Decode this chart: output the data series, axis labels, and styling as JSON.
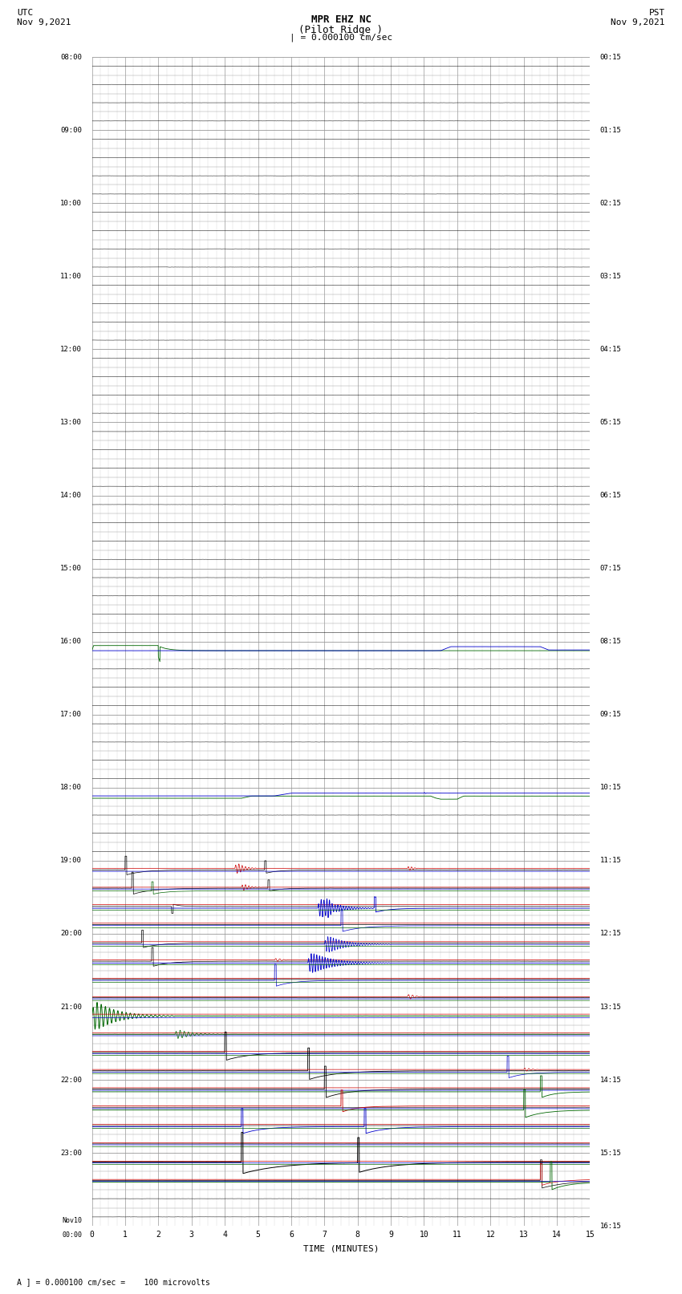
{
  "title_line1": "MPR EHZ NC",
  "title_line2": "(Pilot Ridge )",
  "scale_label": "| = 0.000100 cm/sec",
  "left_label_top": "UTC",
  "left_label_date": "Nov 9,2021",
  "right_label_top": "PST",
  "right_label_date": "Nov 9,2021",
  "bottom_label": "TIME (MINUTES)",
  "footer_note": "A ] = 0.000100 cm/sec =    100 microvolts",
  "bg_color": "#ffffff",
  "grid_color": "#999999",
  "n_rows": 64,
  "n_minutes": 15,
  "utc_hour_labels": [
    [
      0,
      "08:00"
    ],
    [
      4,
      "09:00"
    ],
    [
      8,
      "10:00"
    ],
    [
      12,
      "11:00"
    ],
    [
      16,
      "12:00"
    ],
    [
      20,
      "13:00"
    ],
    [
      24,
      "14:00"
    ],
    [
      28,
      "15:00"
    ],
    [
      32,
      "16:00"
    ],
    [
      36,
      "17:00"
    ],
    [
      40,
      "18:00"
    ],
    [
      44,
      "19:00"
    ],
    [
      48,
      "20:00"
    ],
    [
      52,
      "21:00"
    ],
    [
      56,
      "22:00"
    ],
    [
      60,
      "23:00"
    ],
    [
      64,
      "Nov10\n00:00"
    ]
  ],
  "pst_hour_labels": [
    [
      0,
      "00:15"
    ],
    [
      4,
      "01:15"
    ],
    [
      8,
      "02:15"
    ],
    [
      12,
      "03:15"
    ],
    [
      16,
      "04:15"
    ],
    [
      20,
      "05:15"
    ],
    [
      24,
      "06:15"
    ],
    [
      28,
      "07:15"
    ],
    [
      32,
      "08:15"
    ],
    [
      36,
      "09:15"
    ],
    [
      40,
      "10:15"
    ],
    [
      44,
      "11:15"
    ],
    [
      48,
      "12:15"
    ],
    [
      52,
      "13:15"
    ],
    [
      56,
      "14:15"
    ],
    [
      60,
      "15:15"
    ],
    [
      64,
      "16:15"
    ]
  ]
}
